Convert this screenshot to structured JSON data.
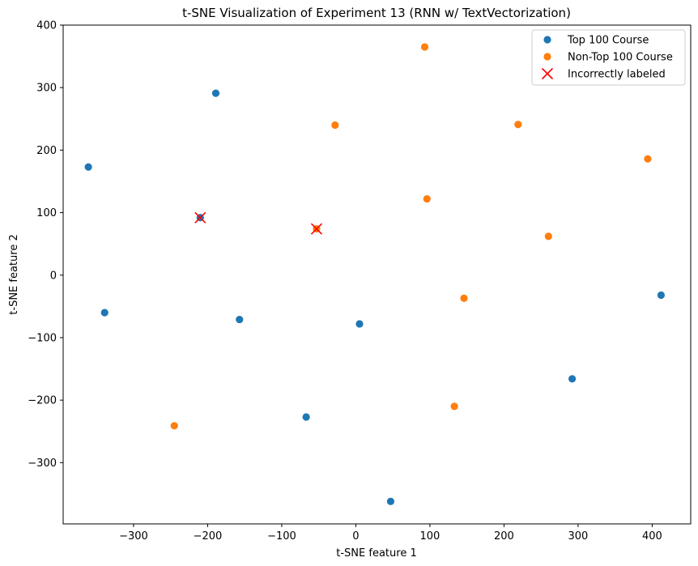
{
  "chart_data": {
    "type": "scatter",
    "title": "t-SNE Visualization of Experiment 13 (RNN w/ TextVectorization)",
    "xlabel": "t-SNE feature 1",
    "ylabel": "t-SNE feature 2",
    "xlim": [
      -395,
      452
    ],
    "ylim": [
      -398,
      400
    ],
    "xticks": [
      -300,
      -200,
      -100,
      0,
      100,
      200,
      300,
      400
    ],
    "yticks": [
      -300,
      -200,
      -100,
      0,
      100,
      200,
      300,
      400
    ],
    "xtick_labels": [
      "−300",
      "−200",
      "−100",
      "0",
      "100",
      "200",
      "300",
      "400"
    ],
    "ytick_labels": [
      "−300",
      "−200",
      "−100",
      "0",
      "100",
      "200",
      "300",
      "400"
    ],
    "grid": false,
    "legend_position": "top-right",
    "series": [
      {
        "name": "Top 100 Course",
        "color": "#1f77b4",
        "marker": "circle",
        "points": [
          {
            "x": -361,
            "y": 173
          },
          {
            "x": -189,
            "y": 291
          },
          {
            "x": -210,
            "y": 92
          },
          {
            "x": -339,
            "y": -60
          },
          {
            "x": -157,
            "y": -71
          },
          {
            "x": 5,
            "y": -78
          },
          {
            "x": -67,
            "y": -227
          },
          {
            "x": 47,
            "y": -362
          },
          {
            "x": 292,
            "y": -166
          },
          {
            "x": 412,
            "y": -32
          }
        ]
      },
      {
        "name": "Non-Top 100 Course",
        "color": "#ff7f0e",
        "marker": "circle",
        "points": [
          {
            "x": 93,
            "y": 365
          },
          {
            "x": -28,
            "y": 240
          },
          {
            "x": 219,
            "y": 241
          },
          {
            "x": 394,
            "y": 186
          },
          {
            "x": 96,
            "y": 122
          },
          {
            "x": -53,
            "y": 74
          },
          {
            "x": 260,
            "y": 62
          },
          {
            "x": 146,
            "y": -37
          },
          {
            "x": 133,
            "y": -210
          },
          {
            "x": -245,
            "y": -241
          }
        ]
      },
      {
        "name": "Incorrectly labeled",
        "color": "#ff0000",
        "marker": "x",
        "points": [
          {
            "x": -210,
            "y": 92
          },
          {
            "x": -53,
            "y": 74
          }
        ]
      }
    ]
  }
}
